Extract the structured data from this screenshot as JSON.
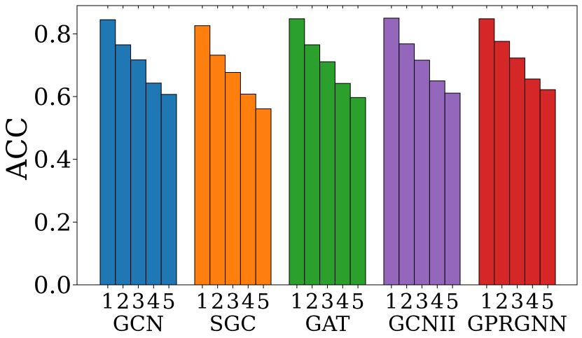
{
  "chart_data": {
    "type": "bar",
    "title": "",
    "xlabel": "",
    "ylabel": "ACC",
    "ylim": [
      0,
      0.89
    ],
    "yticks": [
      0.0,
      0.2,
      0.4,
      0.6,
      0.8
    ],
    "ytick_labels": [
      "0.0",
      "0.2",
      "0.4",
      "0.6",
      "0.8"
    ],
    "legend": "none",
    "grid": false,
    "categories": [
      "1",
      "2",
      "3",
      "4",
      "5"
    ],
    "series": [
      {
        "name": "GCN",
        "color": "#1f77b4",
        "values": [
          0.845,
          0.765,
          0.717,
          0.643,
          0.607
        ]
      },
      {
        "name": "SGC",
        "color": "#ff7f0e",
        "values": [
          0.826,
          0.732,
          0.677,
          0.608,
          0.561
        ]
      },
      {
        "name": "GAT",
        "color": "#2ca02c",
        "values": [
          0.848,
          0.765,
          0.711,
          0.642,
          0.597
        ]
      },
      {
        "name": "GCNII",
        "color": "#9467bd",
        "values": [
          0.85,
          0.768,
          0.716,
          0.65,
          0.611
        ]
      },
      {
        "name": "GPRGNN",
        "color": "#d62728",
        "values": [
          0.848,
          0.776,
          0.723,
          0.656,
          0.622
        ]
      }
    ]
  }
}
